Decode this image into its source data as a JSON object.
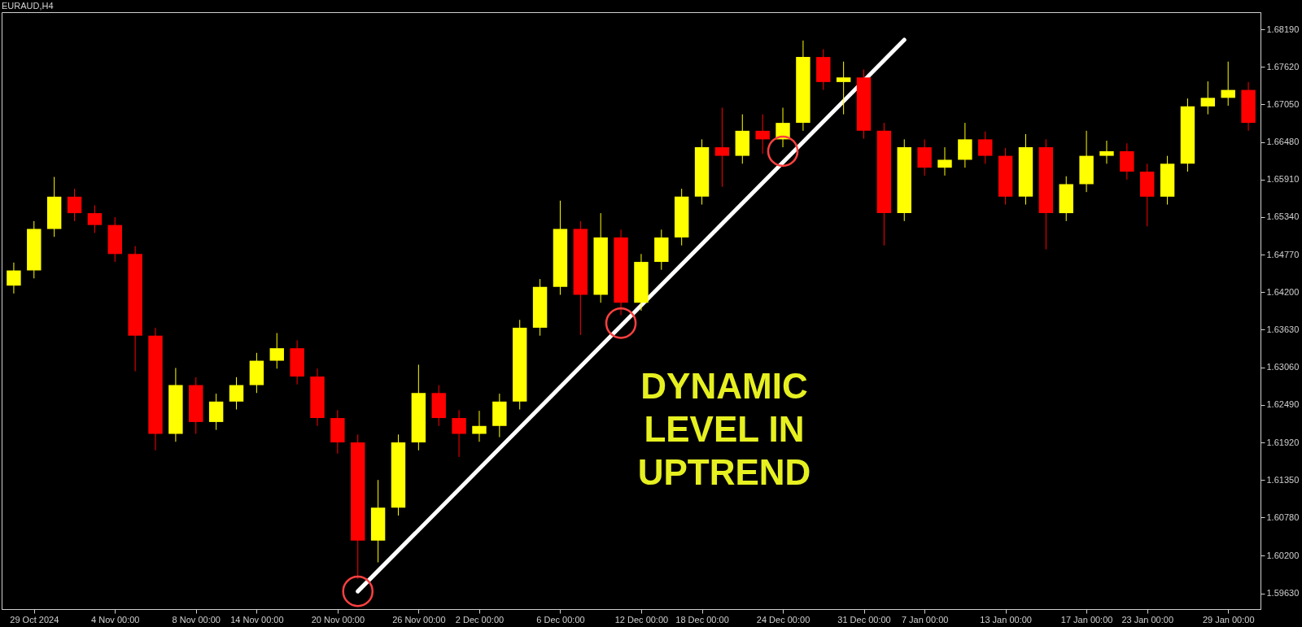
{
  "chart_data": {
    "type": "candlestick",
    "title": "EURAUD,H4",
    "categories": [
      null,
      "29 Oct 2024",
      null,
      null,
      null,
      "4 Nov 00:00",
      null,
      null,
      null,
      "8 Nov 00:00",
      null,
      null,
      "14 Nov 00:00",
      null,
      null,
      null,
      "20 Nov 00:00",
      null,
      null,
      null,
      "26 Nov 00:00",
      null,
      null,
      "2 Dec 00:00",
      null,
      null,
      null,
      "6 Dec 00:00",
      null,
      null,
      null,
      "12 Dec 00:00",
      null,
      null,
      "18 Dec 00:00",
      null,
      null,
      null,
      "24 Dec 00:00",
      null,
      null,
      null,
      "31 Dec 00:00",
      null,
      null,
      "7 Jan 00:00",
      null,
      null,
      null,
      "13 Jan 00:00",
      null,
      null,
      null,
      "17 Jan 00:00",
      null,
      null,
      "23 Jan 00:00",
      null,
      null,
      null,
      "29 Jan 00:00",
      null
    ],
    "ohlc": [
      [
        1.643,
        1.6465,
        1.6418,
        1.6453
      ],
      [
        1.6453,
        1.6528,
        1.6441,
        1.6516
      ],
      [
        1.6516,
        1.6595,
        1.6504,
        1.6565
      ],
      [
        1.6565,
        1.6577,
        1.6528,
        1.654
      ],
      [
        1.654,
        1.6552,
        1.651,
        1.6522
      ],
      [
        1.6522,
        1.6534,
        1.6466,
        1.6478
      ],
      [
        1.6478,
        1.649,
        1.63,
        1.6354
      ],
      [
        1.6354,
        1.6366,
        1.618,
        1.6205
      ],
      [
        1.6205,
        1.6305,
        1.6193,
        1.6279
      ],
      [
        1.6279,
        1.6291,
        1.6205,
        1.6223
      ],
      [
        1.6223,
        1.6266,
        1.6211,
        1.6254
      ],
      [
        1.6254,
        1.6291,
        1.6242,
        1.6279
      ],
      [
        1.6279,
        1.6328,
        1.6267,
        1.6316
      ],
      [
        1.6316,
        1.6358,
        1.6304,
        1.6335
      ],
      [
        1.6335,
        1.6347,
        1.628,
        1.6292
      ],
      [
        1.6292,
        1.6304,
        1.6217,
        1.6229
      ],
      [
        1.6229,
        1.6241,
        1.6175,
        1.6192
      ],
      [
        1.6192,
        1.6204,
        1.5985,
        1.6043
      ],
      [
        1.6043,
        1.6135,
        1.601,
        1.6093
      ],
      [
        1.6093,
        1.6204,
        1.6081,
        1.6192
      ],
      [
        1.6192,
        1.631,
        1.618,
        1.6267
      ],
      [
        1.6267,
        1.6279,
        1.6217,
        1.6229
      ],
      [
        1.6229,
        1.6241,
        1.617,
        1.6205
      ],
      [
        1.6205,
        1.624,
        1.6193,
        1.6217
      ],
      [
        1.6217,
        1.6266,
        1.62,
        1.6254
      ],
      [
        1.6254,
        1.6378,
        1.6242,
        1.6366
      ],
      [
        1.6366,
        1.644,
        1.6354,
        1.6428
      ],
      [
        1.6428,
        1.6559,
        1.6416,
        1.6516
      ],
      [
        1.6516,
        1.6528,
        1.6355,
        1.6416
      ],
      [
        1.6416,
        1.654,
        1.6404,
        1.6503
      ],
      [
        1.6503,
        1.6515,
        1.6385,
        1.6404
      ],
      [
        1.6404,
        1.6478,
        1.6392,
        1.6466
      ],
      [
        1.6466,
        1.6515,
        1.6454,
        1.6503
      ],
      [
        1.6503,
        1.6577,
        1.6491,
        1.6565
      ],
      [
        1.6565,
        1.6652,
        1.6553,
        1.664
      ],
      [
        1.664,
        1.67,
        1.658,
        1.6627
      ],
      [
        1.6627,
        1.669,
        1.6615,
        1.6665
      ],
      [
        1.6665,
        1.669,
        1.663,
        1.6652
      ],
      [
        1.6652,
        1.67,
        1.664,
        1.6677
      ],
      [
        1.6677,
        1.6802,
        1.6665,
        1.6777
      ],
      [
        1.6777,
        1.6789,
        1.6727,
        1.6739
      ],
      [
        1.6739,
        1.677,
        1.669,
        1.6746
      ],
      [
        1.6746,
        1.6758,
        1.6653,
        1.6665
      ],
      [
        1.6665,
        1.6677,
        1.6491,
        1.654
      ],
      [
        1.654,
        1.6652,
        1.6528,
        1.664
      ],
      [
        1.664,
        1.6652,
        1.6597,
        1.6609
      ],
      [
        1.6609,
        1.664,
        1.6597,
        1.6621
      ],
      [
        1.6621,
        1.6677,
        1.6609,
        1.6652
      ],
      [
        1.6652,
        1.6664,
        1.6615,
        1.6627
      ],
      [
        1.6627,
        1.6639,
        1.6553,
        1.6565
      ],
      [
        1.6565,
        1.666,
        1.6553,
        1.664
      ],
      [
        1.664,
        1.6652,
        1.6485,
        1.654
      ],
      [
        1.654,
        1.6596,
        1.6528,
        1.6584
      ],
      [
        1.6584,
        1.6665,
        1.6572,
        1.6627
      ],
      [
        1.6627,
        1.665,
        1.6615,
        1.6634
      ],
      [
        1.6634,
        1.6646,
        1.6591,
        1.6603
      ],
      [
        1.6603,
        1.6615,
        1.652,
        1.6565
      ],
      [
        1.6565,
        1.6627,
        1.6553,
        1.6615
      ],
      [
        1.6615,
        1.6714,
        1.6603,
        1.6702
      ],
      [
        1.6702,
        1.674,
        1.669,
        1.6715
      ],
      [
        1.6715,
        1.677,
        1.6703,
        1.6727
      ],
      [
        1.6727,
        1.6739,
        1.6665,
        1.6677
      ]
    ],
    "colors": [
      "#ffff00",
      "#ffff00",
      "#ffff00",
      "#ff0000",
      "#ff0000",
      "#ff0000",
      "#ff0000",
      "#ff0000",
      "#ffff00",
      "#ff0000",
      "#ffff00",
      "#ffff00",
      "#ffff00",
      "#ffff00",
      "#ff0000",
      "#ff0000",
      "#ff0000",
      "#ff0000",
      "#ffff00",
      "#ffff00",
      "#ffff00",
      "#ff0000",
      "#ff0000",
      "#ffff00",
      "#ffff00",
      "#ffff00",
      "#ffff00",
      "#ffff00",
      "#ff0000",
      "#ffff00",
      "#ff0000",
      "#ffff00",
      "#ffff00",
      "#ffff00",
      "#ffff00",
      "#ff0000",
      "#ffff00",
      "#ff0000",
      "#ffff00",
      "#ffff00",
      "#ff0000",
      "#ffff00",
      "#ff0000",
      "#ff0000",
      "#ffff00",
      "#ff0000",
      "#ffff00",
      "#ffff00",
      "#ff0000",
      "#ff0000",
      "#ffff00",
      "#ff0000",
      "#ffff00",
      "#ffff00",
      "#ffff00",
      "#ff0000",
      "#ff0000",
      "#ffff00",
      "#ffff00",
      "#ffff00",
      "#ffff00",
      "#ff0000"
    ],
    "series": [
      {
        "type": "line",
        "color": "#ffffff",
        "values": [
          null,
          null,
          null,
          null,
          null,
          null,
          null,
          null,
          null,
          null,
          null,
          null,
          null,
          null,
          null,
          null,
          null,
          1.5966,
          null,
          null,
          null,
          null,
          null,
          null,
          null,
          null,
          null,
          null,
          null,
          null,
          null,
          null,
          null,
          null,
          null,
          null,
          null,
          null,
          null,
          null,
          null,
          null,
          null,
          null,
          1.6803,
          null,
          null,
          null,
          null,
          null,
          null,
          null,
          null,
          null,
          null,
          null,
          null,
          null,
          null,
          null,
          null,
          null
        ]
      },
      {
        "type": "scatter",
        "marker": "circle",
        "color": "#ff4040",
        "values": [
          null,
          null,
          null,
          null,
          null,
          null,
          null,
          null,
          null,
          null,
          null,
          null,
          null,
          null,
          null,
          null,
          null,
          1.5966,
          null,
          null,
          null,
          null,
          null,
          null,
          null,
          null,
          null,
          null,
          null,
          null,
          1.6373,
          null,
          null,
          null,
          null,
          null,
          null,
          null,
          1.6634,
          null,
          null,
          null,
          null,
          null,
          null,
          null,
          null,
          null,
          null,
          null,
          null,
          null,
          null,
          null,
          null,
          null,
          null,
          null,
          null,
          null,
          null,
          null
        ]
      }
    ],
    "annotations": [
      "DYNAMIC\nLEVEL IN\nUPTREND"
    ],
    "ylim": [
      1.5939,
      1.6845
    ],
    "yticks": [
      {
        "value": 1.5963,
        "label": "1.59630"
      },
      {
        "value": 1.602,
        "label": "1.60200"
      },
      {
        "value": 1.6078,
        "label": "1.60780"
      },
      {
        "value": 1.6135,
        "label": "1.61350"
      },
      {
        "value": 1.6192,
        "label": "1.61920"
      },
      {
        "value": 1.6249,
        "label": "1.62490"
      },
      {
        "value": 1.6306,
        "label": "1.63060"
      },
      {
        "value": 1.6363,
        "label": "1.63630"
      },
      {
        "value": 1.642,
        "label": "1.64200"
      },
      {
        "value": 1.6477,
        "label": "1.64770"
      },
      {
        "value": 1.6534,
        "label": "1.65340"
      },
      {
        "value": 1.6591,
        "label": "1.65910"
      },
      {
        "value": 1.6648,
        "label": "1.66480"
      },
      {
        "value": 1.6705,
        "label": "1.67050"
      },
      {
        "value": 1.6762,
        "label": "1.67620"
      },
      {
        "value": 1.6819,
        "label": "1.68190"
      }
    ]
  }
}
